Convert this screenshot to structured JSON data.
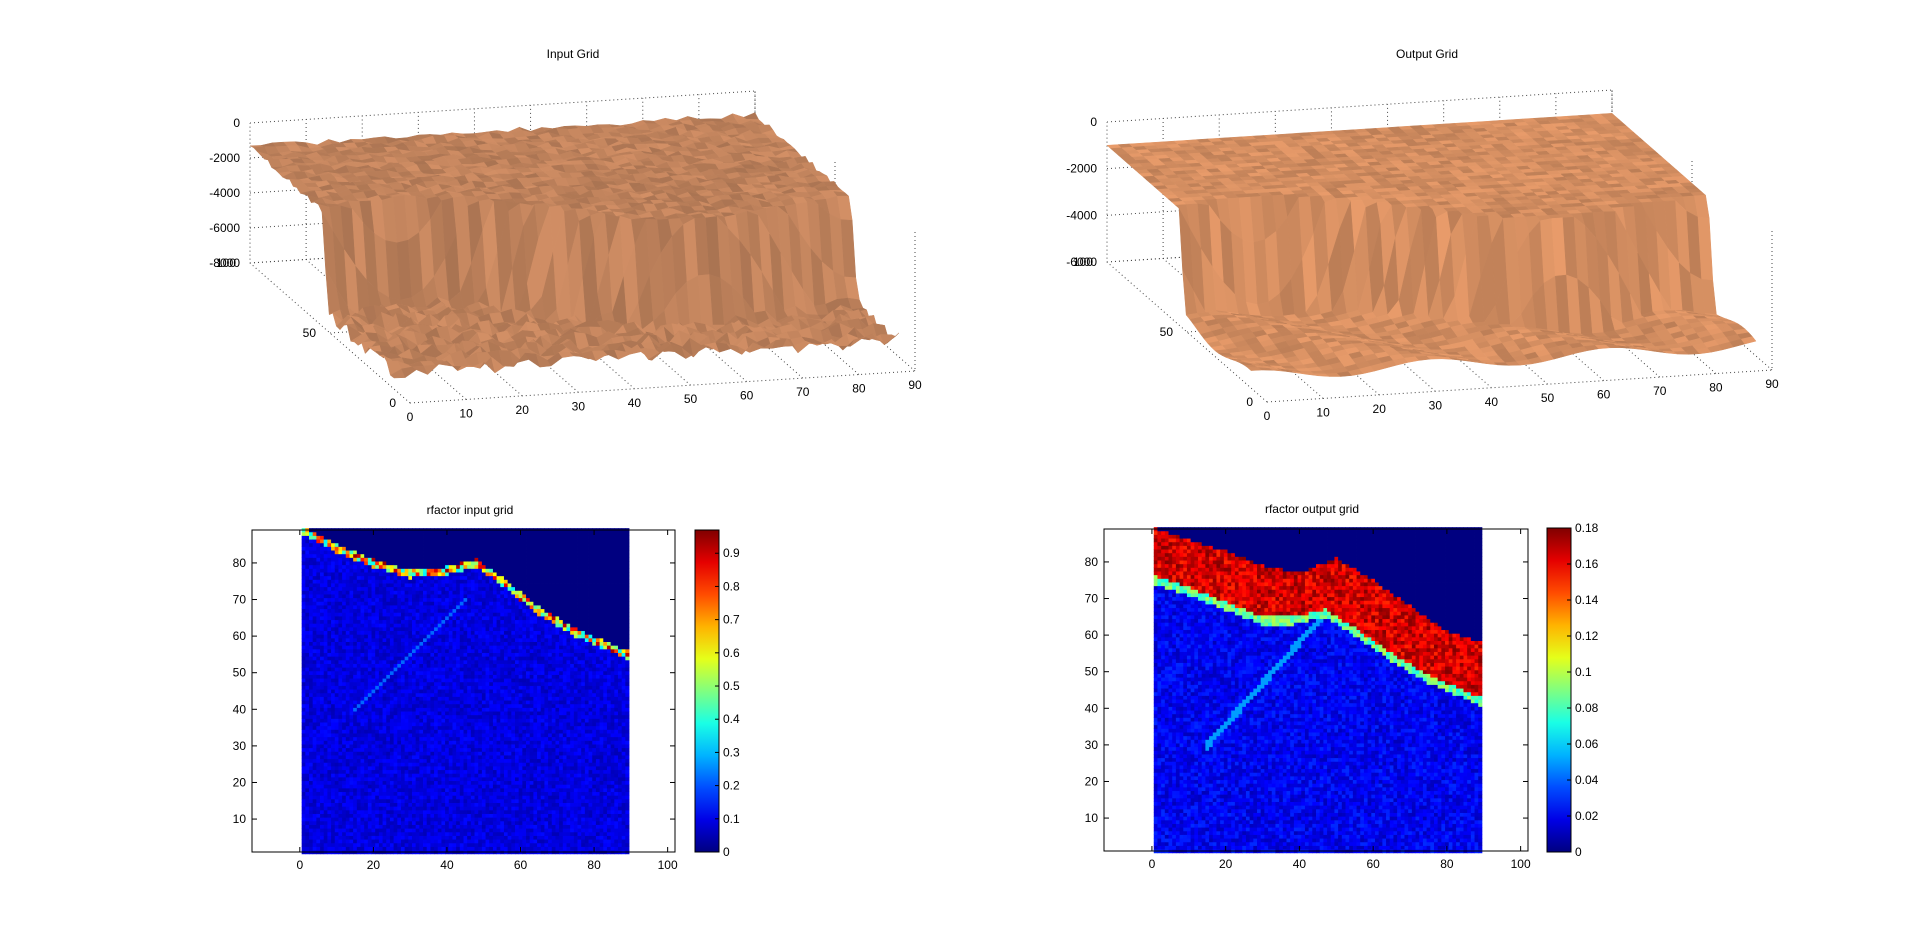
{
  "figure": {
    "panels": [
      {
        "title": "Input Grid"
      },
      {
        "title": "Output Grid"
      },
      {
        "title": "rfactor input grid"
      },
      {
        "title": "rfactor output grid"
      }
    ]
  },
  "chart_data": [
    {
      "type": "surface",
      "title": "Input Grid",
      "surface_color": "#C88860",
      "x_ticks": [
        0,
        10,
        20,
        30,
        40,
        50,
        60,
        70,
        80,
        90
      ],
      "y_ticks": [
        0,
        50,
        100
      ],
      "z_ticks": [
        0,
        -2000,
        -4000,
        -6000,
        -8000
      ],
      "zlim": [
        -8000,
        0
      ],
      "ylim": [
        0,
        100
      ],
      "xlim": [
        0,
        90
      ],
      "shelf_depth": -1500,
      "floor_depth": -7000
    },
    {
      "type": "surface",
      "title": "Output Grid",
      "surface_color": "#DD9465",
      "x_ticks": [
        0,
        10,
        20,
        30,
        40,
        50,
        60,
        70,
        80,
        90
      ],
      "y_ticks": [
        0,
        50,
        100
      ],
      "z_ticks": [
        0,
        -2000,
        -4000,
        -6000
      ],
      "zlim": [
        -6000,
        0
      ],
      "ylim": [
        0,
        100
      ],
      "xlim": [
        0,
        90
      ],
      "shelf_depth": -1000,
      "floor_depth": -5500
    },
    {
      "type": "heatmap",
      "title": "rfactor input grid",
      "colormap": "jet",
      "xlim": [
        -13,
        102
      ],
      "ylim": [
        1,
        89
      ],
      "x_ticks": [
        0,
        20,
        40,
        60,
        80,
        100
      ],
      "y_ticks": [
        10,
        20,
        30,
        40,
        50,
        60,
        70,
        80
      ],
      "data_x_range": [
        1,
        89
      ],
      "data_y_range": [
        1,
        89
      ],
      "clim": [
        0,
        0.97
      ],
      "colorbar_ticks": [
        0,
        0.1,
        0.2,
        0.3,
        0.4,
        0.5,
        0.6,
        0.7,
        0.8,
        0.9
      ],
      "shelf_edge": [
        [
          1,
          89
        ],
        [
          10,
          84
        ],
        [
          20,
          80
        ],
        [
          30,
          77
        ],
        [
          40,
          78
        ],
        [
          48,
          80
        ],
        [
          55,
          75
        ],
        [
          65,
          67
        ],
        [
          75,
          61
        ],
        [
          89,
          55
        ]
      ],
      "band_value": 0.0,
      "edge_value": 0.55,
      "background_value": 0.05,
      "ridge": {
        "from": [
          15,
          40
        ],
        "to": [
          45,
          70
        ],
        "value": 0.22
      }
    },
    {
      "type": "heatmap",
      "title": "rfactor output grid",
      "colormap": "jet",
      "xlim": [
        -13,
        102
      ],
      "ylim": [
        1,
        89
      ],
      "x_ticks": [
        0,
        20,
        40,
        60,
        80,
        100
      ],
      "y_ticks": [
        10,
        20,
        30,
        40,
        50,
        60,
        70,
        80
      ],
      "data_x_range": [
        1,
        89
      ],
      "data_y_range": [
        1,
        89
      ],
      "clim": [
        0,
        0.18
      ],
      "colorbar_ticks": [
        0,
        0.02,
        0.04,
        0.06,
        0.08,
        0.1,
        0.12,
        0.14,
        0.16,
        0.18
      ],
      "shelf_edge": [
        [
          1,
          75
        ],
        [
          10,
          72
        ],
        [
          20,
          68
        ],
        [
          30,
          64
        ],
        [
          38,
          64
        ],
        [
          47,
          66
        ],
        [
          55,
          61
        ],
        [
          65,
          54
        ],
        [
          75,
          48
        ],
        [
          89,
          42
        ]
      ],
      "top_edge": [
        [
          1,
          89
        ],
        [
          10,
          86
        ],
        [
          20,
          83
        ],
        [
          30,
          79
        ],
        [
          40,
          77
        ],
        [
          50,
          81
        ],
        [
          60,
          75
        ],
        [
          70,
          68
        ],
        [
          80,
          61
        ],
        [
          89,
          58
        ]
      ],
      "band_value": 0.16,
      "background_value": 0.01,
      "ridge": {
        "from": [
          15,
          30
        ],
        "to": [
          47,
          66
        ],
        "value": 0.05
      }
    }
  ]
}
